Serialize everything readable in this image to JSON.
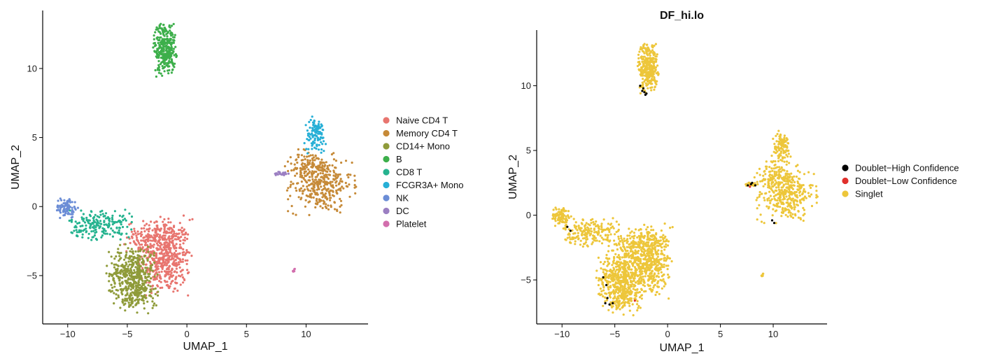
{
  "chart_data": [
    {
      "type": "scatter",
      "title": "",
      "xlabel": "UMAP_1",
      "ylabel": "UMAP_2",
      "xlim": [
        -12.1,
        15.2
      ],
      "ylim": [
        -8.5,
        14.2
      ],
      "xticks": [
        -10,
        -5,
        0,
        5,
        10
      ],
      "yticks": [
        -5,
        0,
        5,
        10
      ],
      "xtick_labels": [
        "−10",
        "−5",
        "0",
        "5",
        "10"
      ],
      "ytick_labels": [
        "−5",
        "0",
        "5",
        "10"
      ],
      "grid": false,
      "legend_position": "right",
      "series": [
        {
          "name": "Naive CD4 T",
          "color": "#E8756F",
          "clusters": [
            {
              "cx": -1.8,
              "cy": -3.6,
              "sx": 1.05,
              "sy": 1.35,
              "n": 520
            },
            {
              "cx": -3.2,
              "cy": -2.2,
              "sx": 0.9,
              "sy": 0.55,
              "n": 120
            }
          ]
        },
        {
          "name": "Memory CD4 T",
          "color": "#C68A38",
          "clusters": [
            {
              "cx": 11.2,
              "cy": 1.6,
              "sx": 1.3,
              "sy": 1.0,
              "n": 330
            },
            {
              "cx": 10.3,
              "cy": 2.9,
              "sx": 0.8,
              "sy": 0.6,
              "n": 90
            }
          ]
        },
        {
          "name": "CD14+ Mono",
          "color": "#8F9B3A",
          "clusters": [
            {
              "cx": -4.6,
              "cy": -4.9,
              "sx": 0.95,
              "sy": 1.0,
              "n": 420
            },
            {
              "cx": -4.0,
              "cy": -6.6,
              "sx": 0.8,
              "sy": 0.5,
              "n": 90
            }
          ]
        },
        {
          "name": "B",
          "color": "#3DAF4B",
          "clusters": [
            {
              "cx": -1.85,
              "cy": 11.5,
              "sx": 0.45,
              "sy": 0.95,
              "n": 300
            }
          ]
        },
        {
          "name": "CD8 T",
          "color": "#25B38F",
          "clusters": [
            {
              "cx": -7.2,
              "cy": -1.3,
              "sx": 1.3,
              "sy": 0.55,
              "n": 190
            }
          ]
        },
        {
          "name": "FCGR3A+ Mono",
          "color": "#27AFD6",
          "clusters": [
            {
              "cx": 10.8,
              "cy": 5.2,
              "sx": 0.45,
              "sy": 0.6,
              "n": 110
            }
          ]
        },
        {
          "name": "NK",
          "color": "#6B8DD6",
          "clusters": [
            {
              "cx": -10.1,
              "cy": -0.1,
              "sx": 0.45,
              "sy": 0.35,
              "n": 90
            }
          ]
        },
        {
          "name": "DC",
          "color": "#9B7FC2",
          "clusters": [
            {
              "cx": 8.0,
              "cy": 2.4,
              "sx": 0.35,
              "sy": 0.08,
              "n": 22
            }
          ]
        },
        {
          "name": "Platelet",
          "color": "#D26EAD",
          "clusters": [
            {
              "cx": 9.0,
              "cy": -4.6,
              "sx": 0.06,
              "sy": 0.1,
              "n": 6
            }
          ]
        }
      ]
    },
    {
      "type": "scatter",
      "title": "DF_hi.lo",
      "xlabel": "UMAP_1",
      "ylabel": "UMAP_2",
      "xlim": [
        -12.4,
        15.1
      ],
      "ylim": [
        -8.4,
        14.3
      ],
      "xticks": [
        -10,
        -5,
        0,
        5,
        10
      ],
      "yticks": [
        -5,
        0,
        5,
        10
      ],
      "xtick_labels": [
        "−10",
        "−5",
        "0",
        "5",
        "10"
      ],
      "ytick_labels": [
        "−5",
        "0",
        "5",
        "10"
      ],
      "grid": false,
      "legend_position": "right",
      "series": [
        {
          "name": "Doublet−High Confidence",
          "color": "#000000",
          "points": [
            [
              -2.4,
              9.6
            ],
            [
              -2.2,
              9.5
            ],
            [
              -2.0,
              9.4
            ],
            [
              -2.6,
              10.0
            ],
            [
              -2.3,
              9.8
            ],
            [
              -9.5,
              -0.9
            ],
            [
              -9.2,
              -1.2
            ],
            [
              -6.1,
              -4.8
            ],
            [
              -5.8,
              -5.4
            ],
            [
              -5.7,
              -6.4
            ],
            [
              -5.9,
              -6.8
            ],
            [
              -5.5,
              -6.9
            ],
            [
              -5.2,
              -6.8
            ],
            [
              7.6,
              2.3
            ],
            [
              7.9,
              2.4
            ],
            [
              8.0,
              2.5
            ],
            [
              8.3,
              2.3
            ],
            [
              9.9,
              -0.4
            ],
            [
              10.1,
              -0.6
            ],
            [
              -2.1,
              9.3
            ]
          ]
        },
        {
          "name": "Doublet−Low Confidence",
          "color": "#E0302C",
          "points": [
            [
              -3.1,
              -6.6
            ],
            [
              7.8,
              2.2
            ]
          ]
        },
        {
          "name": "Singlet",
          "color": "#EDC63A",
          "clusters": [
            {
              "cx": -1.8,
              "cy": -3.6,
              "sx": 1.05,
              "sy": 1.35,
              "n": 520
            },
            {
              "cx": -3.2,
              "cy": -2.2,
              "sx": 0.9,
              "sy": 0.55,
              "n": 120
            },
            {
              "cx": 11.2,
              "cy": 1.6,
              "sx": 1.3,
              "sy": 1.0,
              "n": 330
            },
            {
              "cx": 10.3,
              "cy": 2.9,
              "sx": 0.8,
              "sy": 0.6,
              "n": 90
            },
            {
              "cx": -4.6,
              "cy": -4.9,
              "sx": 0.95,
              "sy": 1.0,
              "n": 420
            },
            {
              "cx": -4.0,
              "cy": -6.6,
              "sx": 0.8,
              "sy": 0.5,
              "n": 90
            },
            {
              "cx": -1.85,
              "cy": 11.5,
              "sx": 0.45,
              "sy": 0.95,
              "n": 300
            },
            {
              "cx": -7.2,
              "cy": -1.3,
              "sx": 1.3,
              "sy": 0.55,
              "n": 190
            },
            {
              "cx": 10.8,
              "cy": 5.2,
              "sx": 0.45,
              "sy": 0.6,
              "n": 110
            },
            {
              "cx": -10.1,
              "cy": -0.1,
              "sx": 0.45,
              "sy": 0.35,
              "n": 90
            },
            {
              "cx": 8.0,
              "cy": 2.4,
              "sx": 0.35,
              "sy": 0.08,
              "n": 22
            },
            {
              "cx": 9.0,
              "cy": -4.6,
              "sx": 0.06,
              "sy": 0.1,
              "n": 6
            }
          ]
        }
      ]
    }
  ]
}
